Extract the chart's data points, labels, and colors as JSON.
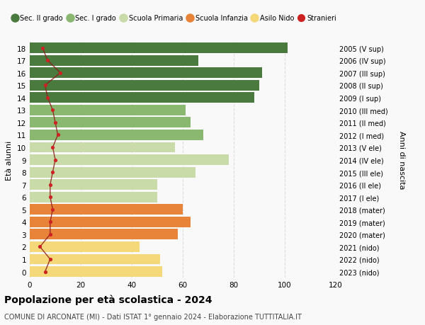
{
  "ages": [
    0,
    1,
    2,
    3,
    4,
    5,
    6,
    7,
    8,
    9,
    10,
    11,
    12,
    13,
    14,
    15,
    16,
    17,
    18
  ],
  "right_labels": [
    "2023 (nido)",
    "2022 (nido)",
    "2021 (nido)",
    "2020 (mater)",
    "2019 (mater)",
    "2018 (mater)",
    "2017 (I ele)",
    "2016 (II ele)",
    "2015 (III ele)",
    "2014 (IV ele)",
    "2013 (V ele)",
    "2012 (I med)",
    "2011 (II med)",
    "2010 (III med)",
    "2009 (I sup)",
    "2008 (II sup)",
    "2007 (III sup)",
    "2006 (IV sup)",
    "2005 (V sup)"
  ],
  "bar_values": [
    52,
    51,
    43,
    58,
    63,
    60,
    50,
    50,
    65,
    78,
    57,
    68,
    63,
    61,
    88,
    90,
    91,
    66,
    101
  ],
  "stranieri_values": [
    6,
    8,
    4,
    8,
    8,
    9,
    8,
    8,
    9,
    10,
    9,
    11,
    10,
    9,
    7,
    6,
    12,
    7,
    5
  ],
  "bar_colors": [
    "#f5d87a",
    "#f5d87a",
    "#f5d87a",
    "#e8843a",
    "#e8843a",
    "#e8843a",
    "#c8dba8",
    "#c8dba8",
    "#c8dba8",
    "#c8dba8",
    "#c8dba8",
    "#8ab870",
    "#8ab870",
    "#8ab870",
    "#4a7a3d",
    "#4a7a3d",
    "#4a7a3d",
    "#4a7a3d",
    "#4a7a3d"
  ],
  "legend_labels": [
    "Sec. II grado",
    "Sec. I grado",
    "Scuola Primaria",
    "Scuola Infanzia",
    "Asilo Nido",
    "Stranieri"
  ],
  "legend_colors": [
    "#4a7a3d",
    "#8ab870",
    "#c8dba8",
    "#e8843a",
    "#f5d87a",
    "#cc2222"
  ],
  "title": "Popolazione per età scolastica - 2024",
  "subtitle": "COMUNE DI ARCONATE (MI) - Dati ISTAT 1° gennaio 2024 - Elaborazione TUTTITALIA.IT",
  "ylabel_left": "Età alunni",
  "ylabel_right": "Anni di nascita",
  "xlim": [
    0,
    120
  ],
  "xticks": [
    0,
    20,
    40,
    60,
    80,
    100,
    120
  ],
  "background_color": "#f9f9f9",
  "grid_color": "#dddddd",
  "bar_height": 0.85
}
